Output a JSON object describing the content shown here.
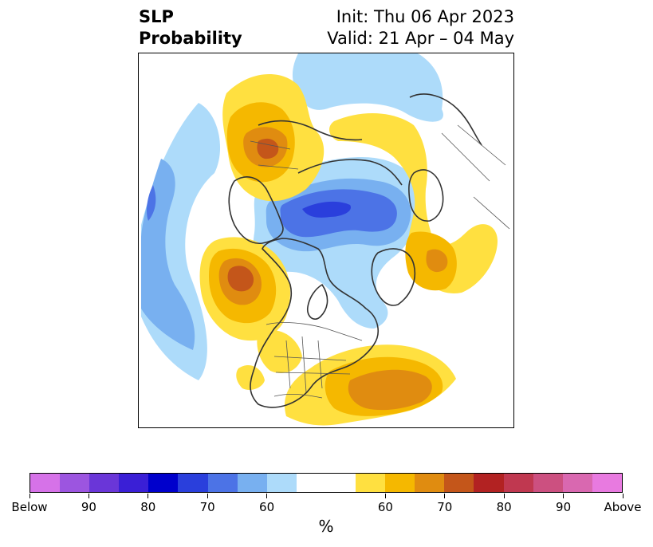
{
  "title": {
    "left_line1": "SLP",
    "left_line2": "Probability",
    "right_line1": "Init: Thu 06 Apr 2023",
    "right_line2": "Valid: 21 Apr – 04 May"
  },
  "map": {
    "projection": "north polar stereographic",
    "region": "North America and Arctic",
    "anomalies": [
      {
        "region": "Alaska / Bering Sea",
        "category": "above",
        "peak_percent": 75
      },
      {
        "region": "Northeast Pacific off British Columbia",
        "category": "above",
        "peak_percent": 75
      },
      {
        "region": "Northern Russia",
        "category": "above",
        "peak_percent": 70
      },
      {
        "region": "Scandinavia / Norwegian Sea",
        "category": "above",
        "peak_percent": 70
      },
      {
        "region": "Southeast US / Western Atlantic",
        "category": "above",
        "peak_percent": 70
      },
      {
        "region": "Central Arctic / Siberian coast",
        "category": "below",
        "peak_percent": 80
      },
      {
        "region": "North Pacific",
        "category": "below",
        "peak_percent": 65
      },
      {
        "region": "Northern Canada / Greenland",
        "category": "below",
        "peak_percent": 60
      }
    ]
  },
  "colorbar": {
    "colors": [
      "#d672e8",
      "#9c55e0",
      "#6a36d8",
      "#3a1fd6",
      "#0000cc",
      "#2a3fdc",
      "#4c73e6",
      "#78b0f0",
      "#addbfa",
      "#ffffff",
      "#ffe040",
      "#f5b800",
      "#e08c10",
      "#c4561a",
      "#b22222",
      "#c03850",
      "#cc5080",
      "#d968b0",
      "#e87ae0"
    ],
    "tick_labels": [
      "Below",
      "90",
      "80",
      "70",
      "60",
      "60",
      "70",
      "80",
      "90",
      "Above"
    ],
    "unit": "%"
  }
}
